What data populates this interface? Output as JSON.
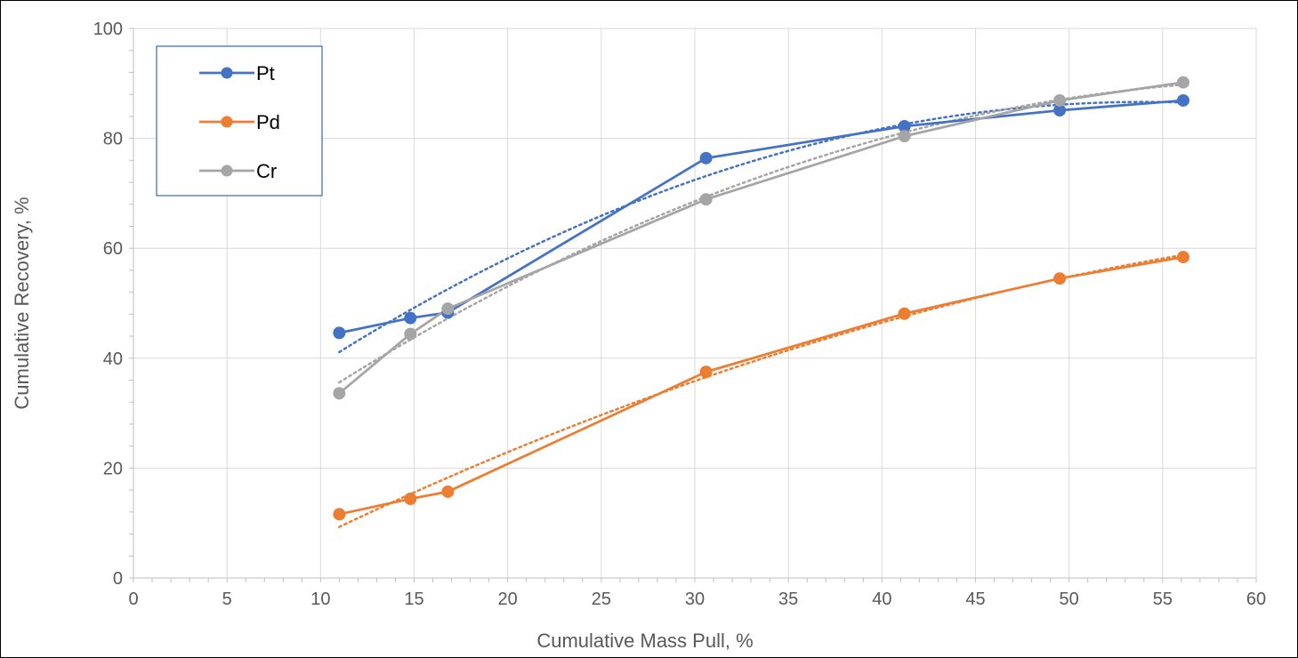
{
  "chart_data": {
    "type": "line",
    "title": "",
    "xlabel": "Cumulative Mass Pull, %",
    "ylabel": "Cumulative Recovery, %",
    "xlim": [
      0,
      60
    ],
    "ylim": [
      0,
      100
    ],
    "xticks": [
      "0",
      "5",
      "10",
      "15",
      "20",
      "25",
      "30",
      "35",
      "40",
      "45",
      "50",
      "55",
      "60"
    ],
    "yticks": [
      "0",
      "20",
      "40",
      "60",
      "80",
      "100"
    ],
    "grid": true,
    "legend_position": "top-left",
    "series": [
      {
        "name": "Pt",
        "color": "#4472C4",
        "x": [
          11.0,
          14.8,
          16.8,
          30.6,
          41.2,
          49.5,
          56.1
        ],
        "y": [
          44.6,
          47.3,
          48.3,
          76.4,
          82.2,
          85.1,
          86.9
        ],
        "trendline": "dotted"
      },
      {
        "name": "Pd",
        "color": "#ED7D31",
        "x": [
          11.0,
          14.8,
          16.8,
          30.6,
          41.2,
          49.5,
          56.1
        ],
        "y": [
          11.6,
          14.4,
          15.7,
          37.5,
          48.1,
          54.5,
          58.4
        ],
        "trendline": "dotted"
      },
      {
        "name": "Cr",
        "color": "#A5A5A5",
        "x": [
          11.0,
          14.8,
          16.8,
          30.6,
          41.2,
          49.5,
          56.1
        ],
        "y": [
          33.6,
          44.4,
          49.0,
          68.9,
          80.4,
          86.9,
          90.2
        ],
        "trendline": "dotted"
      }
    ]
  }
}
